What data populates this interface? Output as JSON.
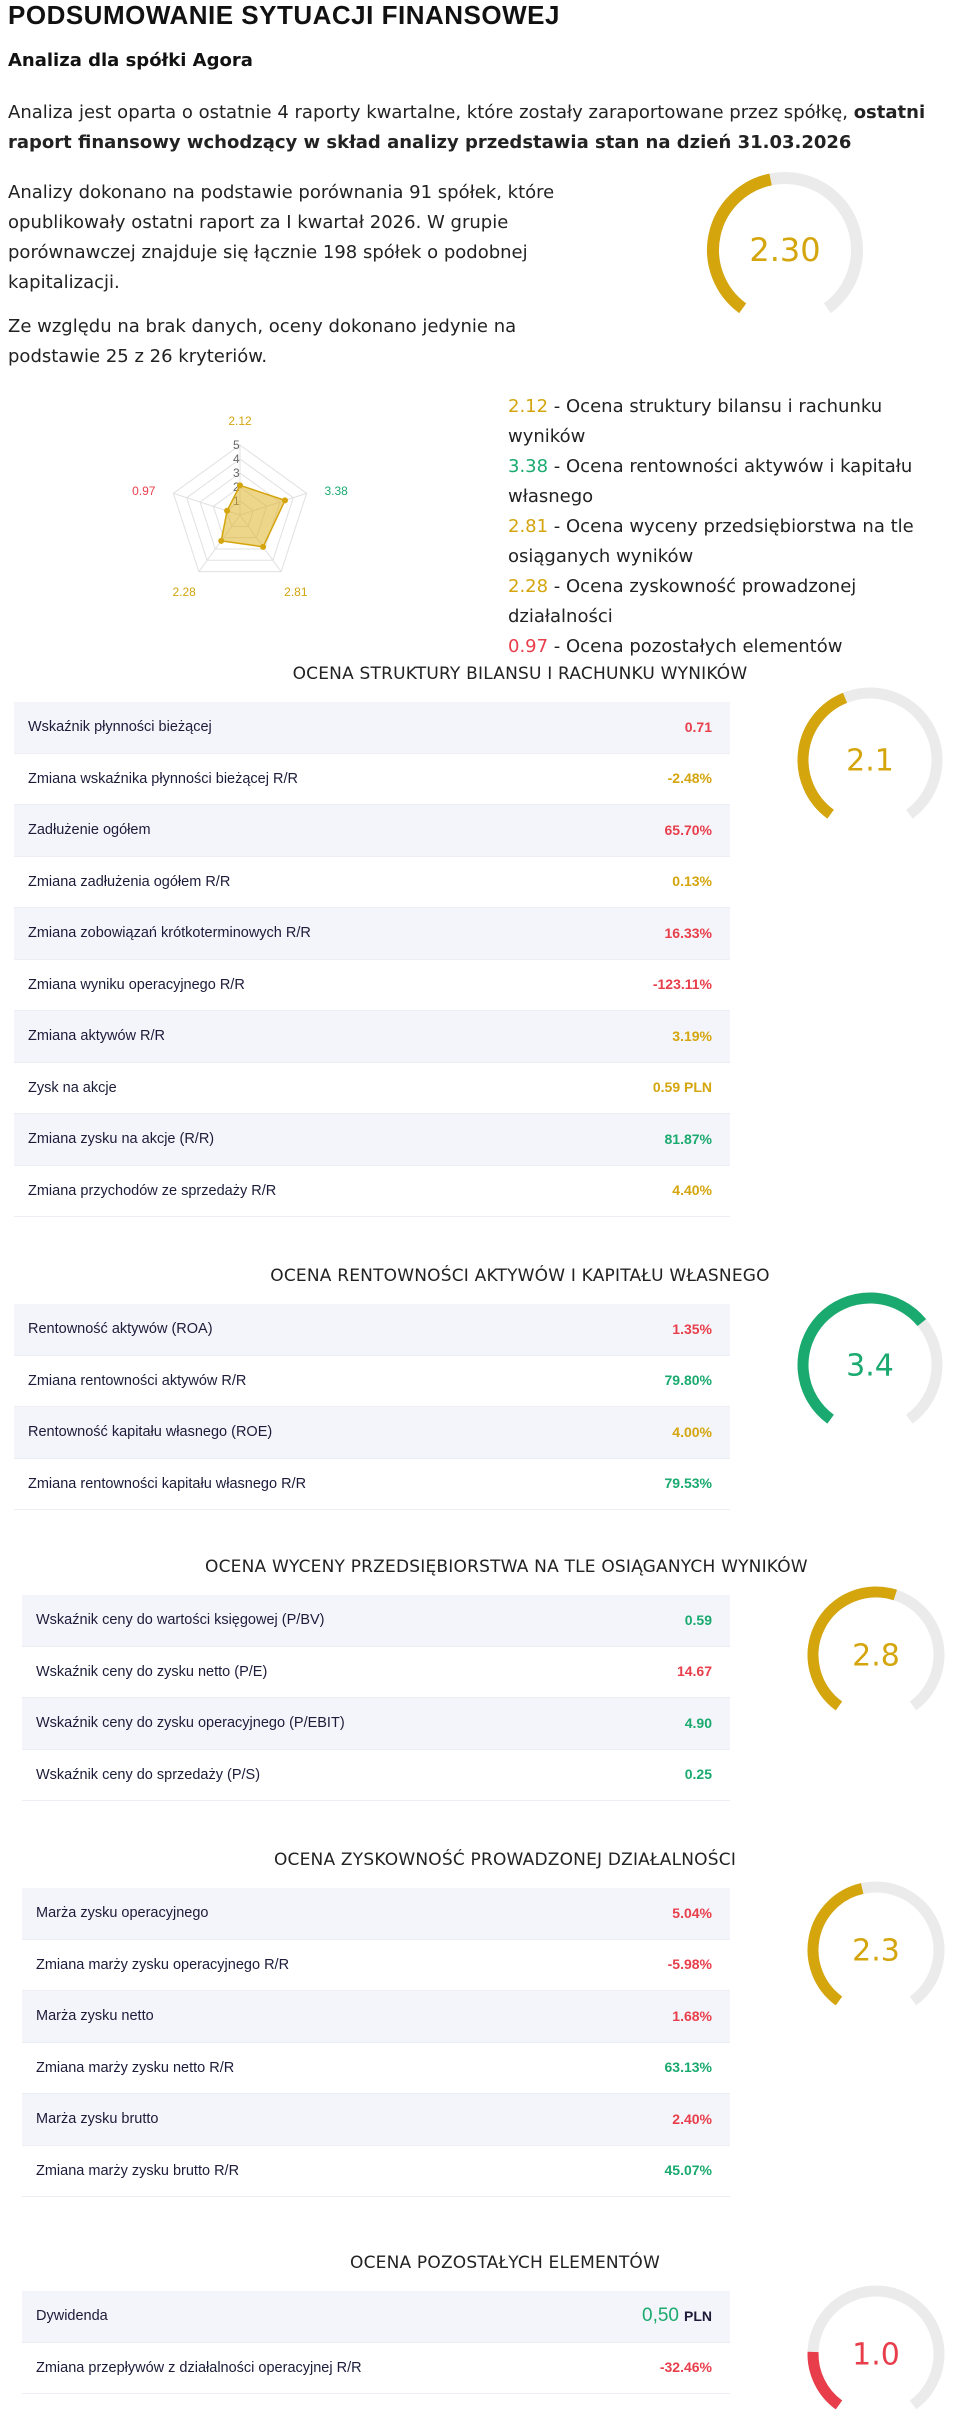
{
  "colors": {
    "good": "#1aaa6f",
    "mid": "#d4a50d",
    "bad": "#e83e4b",
    "track": "#ebebeb"
  },
  "header": {
    "title": "PODSUMOWANIE SYTUACJI FINANSOWEJ",
    "subtitle": "Analiza dla spółki Agora"
  },
  "intro": {
    "p1_a": "Analiza jest oparta o ostatnie 4 raporty kwartalne, które zostały zaraportowane przez spółkę, ",
    "p1_b": "ostatni raport finansowy wchodzący w skład analizy przedstawia stan na dzień 31.03.2026",
    "p2": "Analizy dokonano na podstawie porównania 91 spółek, które opublikowały ostatni raport za I kwartał 2026. W grupie porównawczej znajduje się łącznie 198 spółek o podobnej kapitalizacji.",
    "p3": "Ze względu na brak danych, oceny dokonano jedynie na podstawie 25 z 26 kryteriów."
  },
  "overall_gauge": {
    "label": "2.30",
    "value": 2.3,
    "max": 5,
    "color": "mid"
  },
  "radar": {
    "ticks": [
      "1",
      "2",
      "3",
      "4",
      "5"
    ],
    "points": [
      {
        "value": 2.12,
        "label": "2.12",
        "color": "mid"
      },
      {
        "value": 3.38,
        "label": "3.38",
        "color": "good"
      },
      {
        "value": 2.81,
        "label": "2.81",
        "color": "mid"
      },
      {
        "value": 2.28,
        "label": "2.28",
        "color": "mid"
      },
      {
        "value": 0.97,
        "label": "0.97",
        "color": "bad"
      }
    ]
  },
  "legend": [
    {
      "score": "2.12",
      "color": "mid",
      "text": " - Ocena struktury bilansu i rachunku wyników",
      "lines": [
        "2.12 - Ocena struktury bilansu i rachunku wyników"
      ]
    },
    {
      "score": "3.38",
      "color": "good",
      "text": " - Ocena rentowności aktywów i kapitału",
      "cont": "własnego"
    },
    {
      "score": "2.81",
      "color": "mid",
      "text": " - Ocena wyceny przedsiębiorstwa na tle",
      "cont": "osiąganych wyników"
    },
    {
      "score": "2.28",
      "color": "mid",
      "text": " - Ocena zyskowność prowadzonej działalności"
    },
    {
      "score": "0.97",
      "color": "bad",
      "text": " - Ocena pozostałych elementów"
    }
  ],
  "sections": [
    {
      "title": "OCENA STRUKTURY BILANSU I RACHUNKU WYNIKÓW",
      "gauge": {
        "label": "2.1",
        "value": 2.12,
        "max": 5,
        "color": "mid"
      },
      "rows": [
        {
          "label": "Wskaźnik płynności bieżącej",
          "value": "0.71",
          "color": "bad"
        },
        {
          "label": "Zmiana wskaźnika płynności bieżącej R/R",
          "value": "-2.48%",
          "color": "mid"
        },
        {
          "label": "Zadłużenie ogółem",
          "value": "65.70%",
          "color": "bad"
        },
        {
          "label": "Zmiana zadłużenia ogółem R/R",
          "value": "0.13%",
          "color": "mid"
        },
        {
          "label": "Zmiana zobowiązań krótkoterminowych R/R",
          "value": "16.33%",
          "color": "bad"
        },
        {
          "label": "Zmiana wyniku operacyjnego R/R",
          "value": "-123.11%",
          "color": "bad"
        },
        {
          "label": "Zmiana aktywów R/R",
          "value": "3.19%",
          "color": "mid"
        },
        {
          "label": "Zysk na akcje",
          "value": "0.59 PLN",
          "color": "mid"
        },
        {
          "label": "Zmiana zysku na akcje (R/R)",
          "value": "81.87%",
          "color": "good"
        },
        {
          "label": "Zmiana przychodów ze sprzedaży R/R",
          "value": "4.40%",
          "color": "mid"
        }
      ]
    },
    {
      "title": "OCENA RENTOWNOŚCI AKTYWÓW I KAPITAŁU WŁASNEGO",
      "gauge": {
        "label": "3.4",
        "value": 3.38,
        "max": 5,
        "color": "good"
      },
      "rows": [
        {
          "label": "Rentowność aktywów (ROA)",
          "value": "1.35%",
          "color": "bad"
        },
        {
          "label": "Zmiana rentowności aktywów R/R",
          "value": "79.80%",
          "color": "good"
        },
        {
          "label": "Rentowność kapitału własnego (ROE)",
          "value": "4.00%",
          "color": "mid"
        },
        {
          "label": "Zmiana rentowności kapitału własnego R/R",
          "value": "79.53%",
          "color": "good"
        }
      ]
    },
    {
      "title": "OCENA WYCENY PRZEDSIĘBIORSTWA NA TLE OSIĄGANYCH WYNIKÓW",
      "gauge": {
        "label": "2.8",
        "value": 2.81,
        "max": 5,
        "color": "mid"
      },
      "rows": [
        {
          "label": "Wskaźnik ceny do wartości księgowej (P/BV)",
          "value": "0.59",
          "color": "good"
        },
        {
          "label": "Wskaźnik ceny do zysku netto (P/E)",
          "value": "14.67",
          "color": "bad"
        },
        {
          "label": "Wskaźnik ceny do zysku operacyjnego (P/EBIT)",
          "value": "4.90",
          "color": "good"
        },
        {
          "label": "Wskaźnik ceny do sprzedaży (P/S)",
          "value": "0.25",
          "color": "good"
        }
      ]
    },
    {
      "title": "OCENA ZYSKOWNOŚĆ PROWADZONEJ DZIAŁALNOŚCI",
      "gauge": {
        "label": "2.3",
        "value": 2.28,
        "max": 5,
        "color": "mid"
      },
      "rows": [
        {
          "label": "Marża zysku operacyjnego",
          "value": "5.04%",
          "color": "bad"
        },
        {
          "label": "Zmiana marży zysku operacyjnego R/R",
          "value": "-5.98%",
          "color": "bad"
        },
        {
          "label": "Marża zysku netto",
          "value": "1.68%",
          "color": "bad"
        },
        {
          "label": "Zmiana marży zysku netto R/R",
          "value": "63.13%",
          "color": "good"
        },
        {
          "label": "Marża zysku brutto",
          "value": "2.40%",
          "color": "bad"
        },
        {
          "label": "Zmiana marży zysku brutto R/R",
          "value": "45.07%",
          "color": "good"
        }
      ]
    },
    {
      "title": "OCENA POZOSTAŁYCH ELEMENTÓW",
      "gauge": {
        "label": "1.0",
        "value": 0.97,
        "max": 5,
        "color": "bad"
      },
      "rows": [
        {
          "label": "Dywidenda",
          "value": "0,50",
          "unit": "PLN",
          "color": "good",
          "special": true
        },
        {
          "label": "Zmiana przepływów z działalności operacyjnej R/R",
          "value": "-32.46%",
          "color": "bad"
        }
      ]
    }
  ]
}
